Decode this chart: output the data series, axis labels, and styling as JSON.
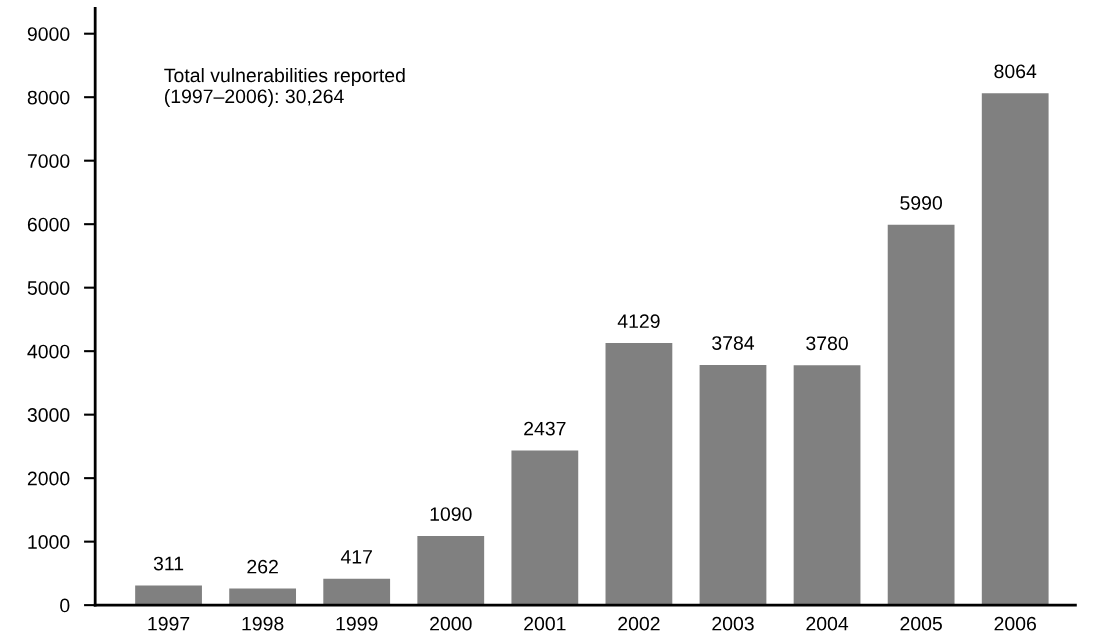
{
  "chart_data": {
    "type": "bar",
    "categories": [
      "1997",
      "1998",
      "1999",
      "2000",
      "2001",
      "2002",
      "2003",
      "2004",
      "2005",
      "2006"
    ],
    "values": [
      311,
      262,
      417,
      1090,
      2437,
      4129,
      3784,
      3780,
      5990,
      8064
    ],
    "color": "#808080",
    "ylim": [
      0,
      9400
    ],
    "yticks": [
      0,
      1000,
      2000,
      3000,
      4000,
      5000,
      6000,
      7000,
      8000,
      9000
    ],
    "data_labels": true,
    "grid": false,
    "legend": false,
    "annotations": [
      "Total vulnerabilities reported\n(1997–2006): 30,264"
    ]
  }
}
